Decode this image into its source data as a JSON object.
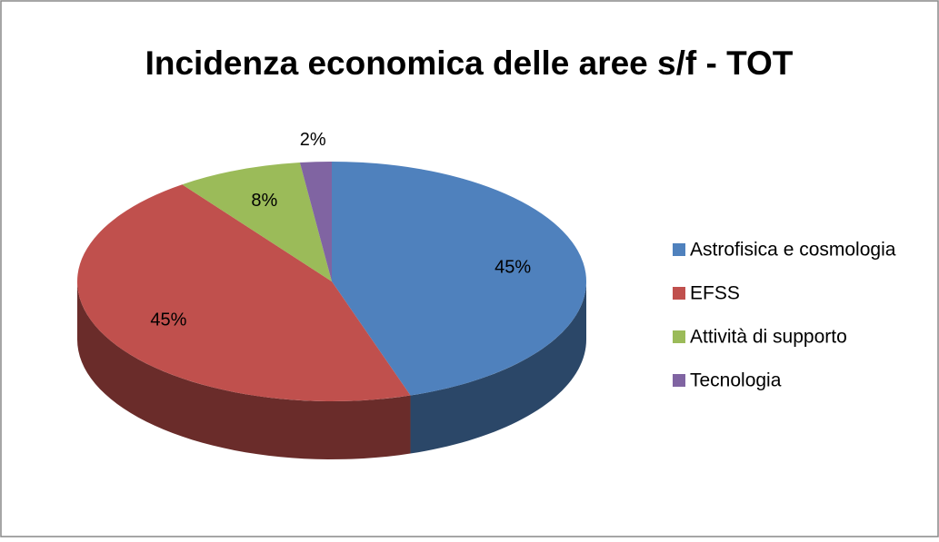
{
  "chart_data": {
    "type": "pie3d",
    "title": "Incidenza economica delle aree s/f - TOT",
    "categories": [
      "Astrofisica e cosmologia",
      "EFSS",
      "Attività di supporto",
      "Tecnologia"
    ],
    "values": [
      45,
      45,
      8,
      2
    ],
    "value_labels": [
      "45%",
      "45%",
      "8%",
      "2%"
    ],
    "colors": [
      "#4f81bd",
      "#c0504d",
      "#9bbb59",
      "#8064a2"
    ],
    "legend": "right"
  }
}
